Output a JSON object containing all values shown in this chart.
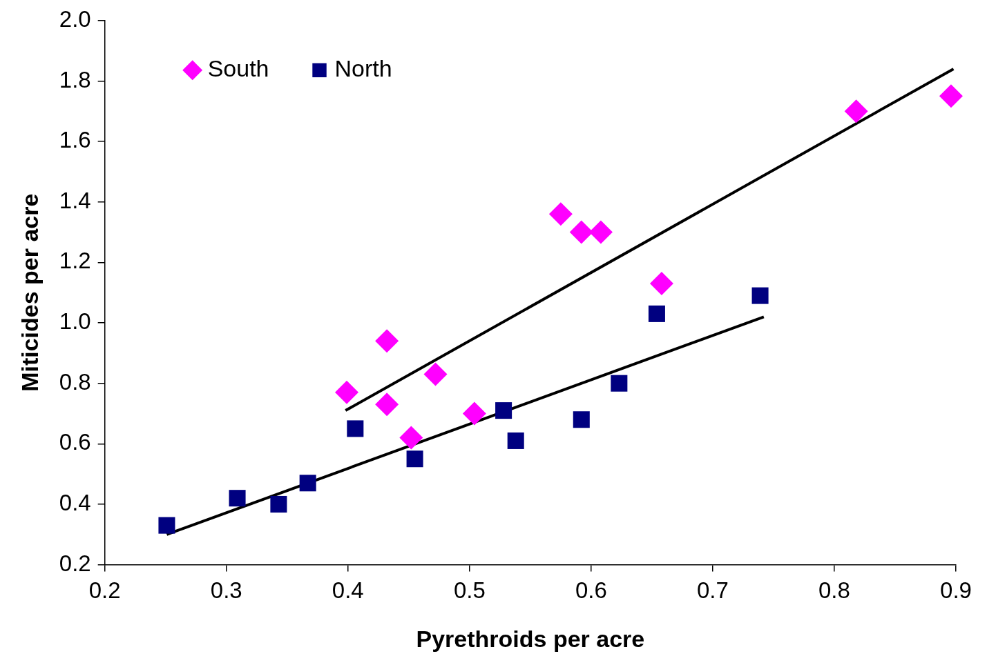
{
  "chart_data": {
    "type": "scatter",
    "xlabel": "Pyrethroids per acre",
    "ylabel": "Miticides per acre",
    "xlim": [
      0.2,
      0.9
    ],
    "xticks": [
      0.2,
      0.3,
      0.4,
      0.5,
      0.6,
      0.7,
      0.8,
      0.9
    ],
    "ylim": [
      0.2,
      2.0
    ],
    "yticks": [
      0.2,
      0.4,
      0.6,
      0.8,
      {
        "value": 1.0,
        "label": "1.0"
      },
      1.2,
      1.4,
      1.6,
      1.8,
      {
        "value": 2.0,
        "label": "2.0"
      }
    ],
    "grid": false,
    "legend": "top left",
    "series": [
      {
        "name": "South",
        "marker": "diamond",
        "color": "#ff00ff",
        "x": [
          0.399,
          0.432,
          0.432,
          0.452,
          0.472,
          0.504,
          0.575,
          0.592,
          0.608,
          0.658,
          0.818,
          0.896
        ],
        "values": [
          0.77,
          0.94,
          0.73,
          0.62,
          0.83,
          0.7,
          1.36,
          1.3,
          1.3,
          1.13,
          1.7,
          1.75
        ]
      },
      {
        "name": "North",
        "marker": "square",
        "color": "#000080",
        "x": [
          0.251,
          0.309,
          0.343,
          0.367,
          0.406,
          0.455,
          0.528,
          0.538,
          0.592,
          0.623,
          0.654,
          0.739
        ],
        "values": [
          0.33,
          0.42,
          0.4,
          0.47,
          0.65,
          0.55,
          0.71,
          0.61,
          0.68,
          0.8,
          1.03,
          1.09
        ]
      },
      {
        "type": "line",
        "marker": "none",
        "color": "#000000",
        "x": [
          0.398,
          0.898
        ],
        "values": [
          0.71,
          1.84
        ]
      },
      {
        "type": "line",
        "marker": "none",
        "color": "#000000",
        "x": [
          0.251,
          0.742
        ],
        "values": [
          0.3,
          1.02
        ]
      }
    ]
  }
}
